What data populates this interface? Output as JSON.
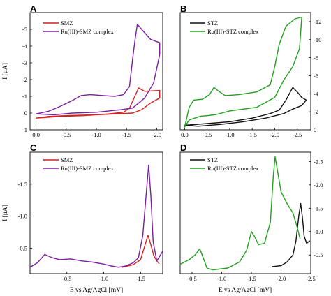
{
  "figure": {
    "x_axis_title": "E vs Ag/AgCl [mV]",
    "y_axis_title": "I [μA]"
  },
  "colors": {
    "smz": "#d42020",
    "ru_smz": "#7a1fa0",
    "stz": "#111111",
    "ru_stz": "#22a01f"
  },
  "chart_data": [
    {
      "panel": "A",
      "type": "line",
      "xlim": [
        0.1,
        -2.1
      ],
      "ylim": [
        1.0,
        -6.0
      ],
      "x_ticks": [
        0.0,
        -0.5,
        -1.0,
        -1.5,
        -2.0
      ],
      "x_tick_labels": [
        "0.0",
        "-0.5",
        "-1.0",
        "-1.5",
        "-2.0"
      ],
      "y_ticks": [
        1,
        0,
        -1,
        -2,
        -3,
        -4,
        -5
      ],
      "y_tick_labels": [
        "1",
        "0",
        "-1",
        "-2",
        "-3",
        "-4",
        "-5"
      ],
      "y_axis_side": "left",
      "legend_position": "top-left",
      "series": [
        {
          "name": "SMZ",
          "color_key": "smz",
          "points": [
            [
              0.0,
              0.3
            ],
            [
              -0.4,
              0.2
            ],
            [
              -0.8,
              0.15
            ],
            [
              -1.2,
              0.05
            ],
            [
              -1.45,
              -0.05
            ],
            [
              -1.55,
              -0.3
            ],
            [
              -1.65,
              -1.1
            ],
            [
              -1.7,
              -1.5
            ],
            [
              -1.8,
              -1.3
            ],
            [
              -2.05,
              -1.35
            ],
            [
              -2.05,
              -0.9
            ],
            [
              -1.9,
              -0.6
            ],
            [
              -1.75,
              -0.2
            ],
            [
              -1.6,
              0.0
            ],
            [
              -1.0,
              0.1
            ],
            [
              -0.5,
              0.15
            ],
            [
              -0.2,
              0.2
            ],
            [
              0.0,
              0.3
            ]
          ]
        },
        {
          "name": "Ru(III)-SMZ complex",
          "color_key": "ru_smz",
          "points": [
            [
              0.0,
              0.05
            ],
            [
              -0.2,
              -0.1
            ],
            [
              -0.4,
              -0.4
            ],
            [
              -0.6,
              -0.75
            ],
            [
              -0.75,
              -1.05
            ],
            [
              -0.9,
              -1.1
            ],
            [
              -1.1,
              -1.05
            ],
            [
              -1.3,
              -1.0
            ],
            [
              -1.45,
              -1.1
            ],
            [
              -1.55,
              -1.6
            ],
            [
              -1.6,
              -3.2
            ],
            [
              -1.65,
              -4.6
            ],
            [
              -1.68,
              -5.3
            ],
            [
              -1.75,
              -5.0
            ],
            [
              -1.9,
              -4.4
            ],
            [
              -2.05,
              -4.2
            ],
            [
              -2.05,
              -3.5
            ],
            [
              -1.95,
              -1.8
            ],
            [
              -1.8,
              -0.9
            ],
            [
              -1.6,
              -0.3
            ],
            [
              -1.4,
              -0.2
            ],
            [
              -1.0,
              -0.05
            ],
            [
              -0.6,
              0.0
            ],
            [
              -0.3,
              0.1
            ],
            [
              0.0,
              0.05
            ]
          ]
        }
      ]
    },
    {
      "panel": "B",
      "type": "line",
      "xlim": [
        0.1,
        -2.8
      ],
      "ylim": [
        0.0,
        13.0
      ],
      "x_ticks": [
        0.0,
        -0.5,
        -1.0,
        -1.5,
        -2.0,
        -2.5
      ],
      "x_tick_labels": [
        "0.0",
        "-0.5",
        "-1.0",
        "-1.5",
        "-2.0",
        "-2.5"
      ],
      "y_ticks": [
        0,
        2,
        4,
        6,
        8,
        10,
        12
      ],
      "y_tick_labels": [
        "0",
        "-2",
        "-4",
        "-6",
        "-8",
        "-10",
        "-12"
      ],
      "y_axis_side": "right",
      "legend_position": "top-left",
      "series": [
        {
          "name": "STZ",
          "color_key": "stz",
          "points": [
            [
              0.0,
              0.5
            ],
            [
              -0.5,
              0.7
            ],
            [
              -1.0,
              0.9
            ],
            [
              -1.5,
              1.3
            ],
            [
              -1.9,
              1.8
            ],
            [
              -2.1,
              2.2
            ],
            [
              -2.25,
              3.3
            ],
            [
              -2.4,
              4.7
            ],
            [
              -2.5,
              4.2
            ],
            [
              -2.6,
              3.6
            ],
            [
              -2.7,
              3.3
            ],
            [
              -2.6,
              2.7
            ],
            [
              -2.4,
              2.3
            ],
            [
              -2.2,
              1.8
            ],
            [
              -1.8,
              1.3
            ],
            [
              -1.3,
              0.9
            ],
            [
              -0.8,
              0.6
            ],
            [
              -0.3,
              0.4
            ],
            [
              0.0,
              0.5
            ]
          ]
        },
        {
          "name": "Ru(III)-STZ complex",
          "color_key": "ru_stz",
          "points": [
            [
              0.0,
              0.3
            ],
            [
              -0.1,
              2.5
            ],
            [
              -0.2,
              3.3
            ],
            [
              -0.4,
              3.4
            ],
            [
              -0.55,
              3.9
            ],
            [
              -0.65,
              4.7
            ],
            [
              -0.75,
              4.3
            ],
            [
              -0.9,
              3.8
            ],
            [
              -1.2,
              3.9
            ],
            [
              -1.6,
              4.2
            ],
            [
              -1.9,
              5.0
            ],
            [
              -2.0,
              7.0
            ],
            [
              -2.1,
              9.5
            ],
            [
              -2.25,
              11.5
            ],
            [
              -2.45,
              12.3
            ],
            [
              -2.6,
              12.5
            ],
            [
              -2.55,
              9.0
            ],
            [
              -2.4,
              7.0
            ],
            [
              -2.2,
              5.5
            ],
            [
              -2.0,
              3.6
            ],
            [
              -1.6,
              2.5
            ],
            [
              -1.0,
              2.1
            ],
            [
              -0.7,
              1.7
            ],
            [
              -0.55,
              1.6
            ],
            [
              -0.35,
              1.5
            ],
            [
              -0.1,
              1.1
            ],
            [
              0.0,
              0.3
            ]
          ]
        }
      ]
    },
    {
      "panel": "C",
      "type": "line",
      "xlim": [
        0.0,
        -1.8
      ],
      "ylim": [
        -0.1,
        -2.0
      ],
      "x_ticks": [
        -0.5,
        -1.0,
        -1.5
      ],
      "x_tick_labels": [
        "-0.5",
        "-1.0",
        "-1.5"
      ],
      "y_ticks": [
        -0.5,
        -1.0,
        -1.5
      ],
      "y_tick_labels": [
        "-0.5",
        "-1.0",
        "-1.5"
      ],
      "y_axis_side": "left",
      "legend_position": "top-left",
      "series": [
        {
          "name": "SMZ",
          "color_key": "smz",
          "points": [
            [
              -1.25,
              -0.2
            ],
            [
              -1.4,
              -0.24
            ],
            [
              -1.5,
              -0.32
            ],
            [
              -1.56,
              -0.55
            ],
            [
              -1.6,
              -0.7
            ],
            [
              -1.64,
              -0.55
            ],
            [
              -1.68,
              -0.38
            ],
            [
              -1.72,
              -0.3
            ],
            [
              -1.75,
              -0.26
            ]
          ]
        },
        {
          "name": "Ru(III)-SMZ complex",
          "color_key": "ru_smz",
          "points": [
            [
              0.0,
              -0.2
            ],
            [
              -0.1,
              -0.27
            ],
            [
              -0.2,
              -0.4
            ],
            [
              -0.3,
              -0.35
            ],
            [
              -0.4,
              -0.32
            ],
            [
              -0.55,
              -0.33
            ],
            [
              -0.7,
              -0.3
            ],
            [
              -0.85,
              -0.28
            ],
            [
              -1.0,
              -0.25
            ],
            [
              -1.1,
              -0.22
            ],
            [
              -1.2,
              -0.2
            ],
            [
              -1.3,
              -0.22
            ],
            [
              -1.4,
              -0.27
            ],
            [
              -1.47,
              -0.35
            ],
            [
              -1.53,
              -0.7
            ],
            [
              -1.58,
              -1.4
            ],
            [
              -1.61,
              -1.8
            ],
            [
              -1.64,
              -1.3
            ],
            [
              -1.67,
              -0.6
            ],
            [
              -1.72,
              -0.3
            ],
            [
              -1.8,
              -0.45
            ]
          ]
        }
      ]
    },
    {
      "panel": "D",
      "type": "line",
      "xlim": [
        -0.3,
        -2.5
      ],
      "ylim": [
        -0.1,
        -2.7
      ],
      "x_ticks": [
        -0.5,
        -1.0,
        -1.5,
        -2.0,
        -2.5
      ],
      "x_tick_labels": [
        "-0.5",
        "-1.0",
        "-1.5",
        "-2.0",
        "-2.5"
      ],
      "y_ticks": [
        -0.5,
        -1.0,
        -1.5,
        -2.0,
        -2.5
      ],
      "y_tick_labels": [
        "-0.5",
        "-1.0",
        "-1.5",
        "-2.0",
        "-2.5"
      ],
      "y_axis_side": "right",
      "legend_position": "top-left",
      "series": [
        {
          "name": "STZ",
          "color_key": "stz",
          "points": [
            [
              -1.85,
              -0.25
            ],
            [
              -2.0,
              -0.27
            ],
            [
              -2.1,
              -0.35
            ],
            [
              -2.2,
              -0.5
            ],
            [
              -2.25,
              -0.8
            ],
            [
              -2.3,
              -1.35
            ],
            [
              -2.33,
              -1.6
            ],
            [
              -2.36,
              -1.3
            ],
            [
              -2.39,
              -0.9
            ],
            [
              -2.43,
              -0.75
            ],
            [
              -2.48,
              -0.8
            ]
          ]
        },
        {
          "name": "Ru(III)-STZ complex",
          "color_key": "ru_stz",
          "points": [
            [
              -0.3,
              -0.3
            ],
            [
              -0.45,
              -0.4
            ],
            [
              -0.55,
              -0.5
            ],
            [
              -0.63,
              -0.63
            ],
            [
              -0.7,
              -0.4
            ],
            [
              -0.75,
              -0.22
            ],
            [
              -0.85,
              -0.18
            ],
            [
              -1.1,
              -0.22
            ],
            [
              -1.3,
              -0.35
            ],
            [
              -1.42,
              -0.6
            ],
            [
              -1.5,
              -1.0
            ],
            [
              -1.55,
              -0.9
            ],
            [
              -1.62,
              -0.72
            ],
            [
              -1.72,
              -0.75
            ],
            [
              -1.82,
              -1.2
            ],
            [
              -1.87,
              -2.2
            ],
            [
              -1.9,
              -2.6
            ],
            [
              -1.94,
              -2.3
            ],
            [
              -2.0,
              -1.85
            ],
            [
              -2.1,
              -1.6
            ],
            [
              -2.2,
              -1.4
            ],
            [
              -2.27,
              -1.1
            ],
            [
              -2.32,
              -0.85
            ]
          ]
        }
      ]
    }
  ]
}
